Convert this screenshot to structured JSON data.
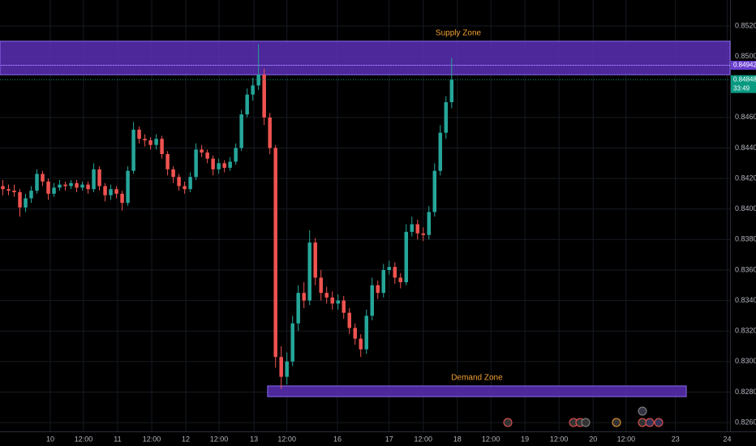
{
  "chart_data": {
    "type": "candlestick",
    "up_color": "#26a69a",
    "down_color": "#ef5350",
    "xlim": [
      -0.5,
      128
    ],
    "ylim": [
      0.82542,
      0.8537
    ],
    "grid": true,
    "xticks": [
      {
        "value": 8.35,
        "label": "10"
      },
      {
        "value": 14.2,
        "label": "12:00"
      },
      {
        "value": 20.2,
        "label": "11"
      },
      {
        "value": 26.2,
        "label": "12:00"
      },
      {
        "value": 32.2,
        "label": "12"
      },
      {
        "value": 38.05,
        "label": "12:00"
      },
      {
        "value": 44.2,
        "label": "13"
      },
      {
        "value": 50.0,
        "label": "12:00"
      },
      {
        "value": 58.9,
        "label": "16"
      },
      {
        "value": 68.0,
        "label": "17"
      },
      {
        "value": 74.0,
        "label": "12:00"
      },
      {
        "value": 80.0,
        "label": "18"
      },
      {
        "value": 85.9,
        "label": "12:00"
      },
      {
        "value": 91.9,
        "label": "19"
      },
      {
        "value": 97.9,
        "label": "12:00"
      },
      {
        "value": 103.9,
        "label": "20"
      },
      {
        "value": 109.7,
        "label": "12:00"
      },
      {
        "value": 118.4,
        "label": "23"
      },
      {
        "value": 127.5,
        "label": "24"
      }
    ],
    "yticks": [
      {
        "value": 0.826,
        "label": "0.82600"
      },
      {
        "value": 0.828,
        "label": "0.82800"
      },
      {
        "value": 0.83,
        "label": "0.83000"
      },
      {
        "value": 0.832,
        "label": "0.83200"
      },
      {
        "value": 0.834,
        "label": "0.83400"
      },
      {
        "value": 0.836,
        "label": "0.83600"
      },
      {
        "value": 0.838,
        "label": "0.83800"
      },
      {
        "value": 0.84,
        "label": "0.84000"
      },
      {
        "value": 0.842,
        "label": "0.84200"
      },
      {
        "value": 0.844,
        "label": "0.84400"
      },
      {
        "value": 0.846,
        "label": "0.84600"
      },
      {
        "value": 0.85,
        "label": "0.85000"
      },
      {
        "value": 0.852,
        "label": "0.85200"
      }
    ],
    "open": [
      0.8415,
      0.8413,
      0.8412,
      0.8411,
      0.8401,
      0.8407,
      0.8412,
      0.8423,
      0.8418,
      0.841,
      0.8414,
      0.8416,
      0.8415,
      0.8417,
      0.8414,
      0.8416,
      0.8413,
      0.8426,
      0.8415,
      0.8409,
      0.8413,
      0.841,
      0.8404,
      0.8425,
      0.8452,
      0.8446,
      0.8445,
      0.8442,
      0.8446,
      0.8436,
      0.8426,
      0.8421,
      0.8415,
      0.8413,
      0.8421,
      0.8439,
      0.8437,
      0.8433,
      0.8426,
      0.843,
      0.8427,
      0.8431,
      0.844,
      0.8462,
      0.8475,
      0.8481,
      0.8488,
      0.846,
      0.844,
      0.8303,
      0.829,
      0.83,
      0.8325,
      0.8345,
      0.834,
      0.8378,
      0.8355,
      0.8345,
      0.8342,
      0.8338,
      0.834,
      0.8332,
      0.8322,
      0.8315,
      0.8308,
      0.833,
      0.835,
      0.8345,
      0.836,
      0.8362,
      0.8355,
      0.8352,
      0.8385,
      0.839,
      0.8384,
      0.8383,
      0.8398,
      0.8425,
      0.845,
      0.847
    ],
    "high": [
      0.8419,
      0.8416,
      0.8416,
      0.8413,
      0.841,
      0.8415,
      0.8426,
      0.8425,
      0.842,
      0.8417,
      0.8419,
      0.8418,
      0.8419,
      0.8419,
      0.8418,
      0.8418,
      0.843,
      0.8428,
      0.8417,
      0.8416,
      0.8415,
      0.8412,
      0.8428,
      0.8457,
      0.8454,
      0.8449,
      0.8447,
      0.8449,
      0.8448,
      0.8438,
      0.8428,
      0.8423,
      0.8418,
      0.8424,
      0.8443,
      0.8442,
      0.8439,
      0.8435,
      0.8433,
      0.8432,
      0.8434,
      0.8443,
      0.8465,
      0.8479,
      0.8486,
      0.8508,
      0.8492,
      0.8463,
      0.8442,
      0.831,
      0.8306,
      0.833,
      0.835,
      0.8352,
      0.8386,
      0.8381,
      0.836,
      0.8349,
      0.8346,
      0.8344,
      0.8343,
      0.8335,
      0.8325,
      0.8318,
      0.8334,
      0.8355,
      0.8353,
      0.8364,
      0.8366,
      0.8365,
      0.8358,
      0.839,
      0.8395,
      0.8393,
      0.8388,
      0.8402,
      0.843,
      0.8455,
      0.8474,
      0.8499
    ],
    "low": [
      0.8409,
      0.8409,
      0.8408,
      0.8395,
      0.8398,
      0.8404,
      0.841,
      0.8415,
      0.8406,
      0.8408,
      0.8412,
      0.8412,
      0.8413,
      0.8411,
      0.8412,
      0.841,
      0.8411,
      0.8412,
      0.8405,
      0.8406,
      0.8407,
      0.8399,
      0.8402,
      0.8423,
      0.8443,
      0.8441,
      0.8439,
      0.8439,
      0.8433,
      0.8422,
      0.8417,
      0.8412,
      0.841,
      0.8411,
      0.8419,
      0.8434,
      0.843,
      0.8422,
      0.8423,
      0.8424,
      0.8425,
      0.8429,
      0.8438,
      0.846,
      0.8471,
      0.8478,
      0.8455,
      0.8436,
      0.8296,
      0.8282,
      0.8285,
      0.8297,
      0.832,
      0.8335,
      0.8337,
      0.835,
      0.834,
      0.8338,
      0.8334,
      0.8334,
      0.8328,
      0.8318,
      0.8311,
      0.8303,
      0.8305,
      0.8327,
      0.8341,
      0.8342,
      0.8357,
      0.8351,
      0.8348,
      0.835,
      0.8382,
      0.838,
      0.8379,
      0.838,
      0.8395,
      0.8422,
      0.8446,
      0.8466
    ],
    "close": [
      0.8413,
      0.8412,
      0.8411,
      0.8401,
      0.8407,
      0.8412,
      0.8423,
      0.8418,
      0.841,
      0.8414,
      0.8416,
      0.8415,
      0.8417,
      0.8414,
      0.8416,
      0.8413,
      0.8426,
      0.8415,
      0.8409,
      0.8413,
      0.841,
      0.8404,
      0.8425,
      0.8452,
      0.8446,
      0.8445,
      0.8442,
      0.8446,
      0.8436,
      0.8426,
      0.8421,
      0.8415,
      0.8413,
      0.8421,
      0.8439,
      0.8437,
      0.8433,
      0.8426,
      0.843,
      0.8427,
      0.8431,
      0.844,
      0.8462,
      0.8475,
      0.8481,
      0.8488,
      0.846,
      0.844,
      0.8303,
      0.829,
      0.83,
      0.8325,
      0.8345,
      0.834,
      0.8378,
      0.8355,
      0.8345,
      0.8342,
      0.8338,
      0.834,
      0.8332,
      0.8322,
      0.8315,
      0.8308,
      0.833,
      0.835,
      0.8345,
      0.836,
      0.8362,
      0.8355,
      0.8352,
      0.8385,
      0.839,
      0.8384,
      0.8383,
      0.8398,
      0.8425,
      0.845,
      0.847,
      0.84848
    ],
    "zones": [
      {
        "label": "Supply Zone",
        "ylim": [
          0.8488,
          0.851
        ],
        "x_range": [
          -0.5,
          128
        ],
        "inner_line": 0.84942,
        "color": "#5b2fb5"
      },
      {
        "label": "Demand Zone",
        "ylim": [
          0.8277,
          0.8284
        ],
        "x_range": [
          46.6,
          120.3
        ],
        "color": "#5b2fb5"
      }
    ],
    "price_lines": [
      {
        "value": 0.84942,
        "color": "#6a3fd0"
      },
      {
        "value": 0.84848,
        "color": "#089981",
        "countdown": "33:49"
      }
    ]
  }
}
